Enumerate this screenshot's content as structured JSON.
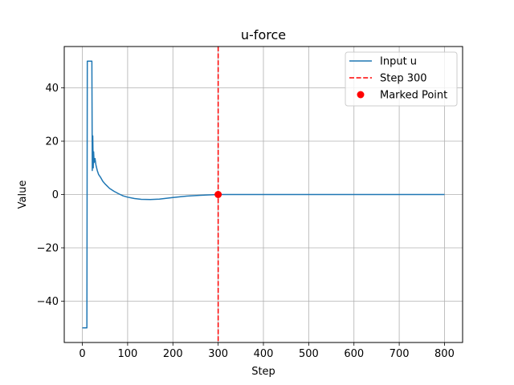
{
  "chart_data": {
    "type": "line",
    "title": "u-force",
    "xlabel": "Step",
    "ylabel": "Value",
    "xlim": [
      -40,
      840
    ],
    "ylim": [
      -55.5,
      55.5
    ],
    "xticks": [
      0,
      100,
      200,
      300,
      400,
      500,
      600,
      700,
      800
    ],
    "yticks": [
      -40,
      -20,
      0,
      20,
      40
    ],
    "grid": true,
    "legend_position": "top-right",
    "series": [
      {
        "name": "Input u",
        "color": "#1f77b4",
        "x": [
          0,
          10,
          11,
          14,
          21,
          22,
          23,
          24,
          25,
          26,
          28,
          30,
          33,
          36,
          40,
          45,
          50,
          60,
          70,
          80,
          90,
          100,
          115,
          130,
          150,
          170,
          200,
          230,
          260,
          290,
          300,
          330,
          400,
          500,
          600,
          700,
          800
        ],
        "y": [
          -50,
          -50,
          50,
          50,
          50,
          9,
          22,
          10,
          16,
          12,
          13.5,
          11,
          9,
          7.5,
          6.5,
          5,
          4,
          2.3,
          1.2,
          0.3,
          -0.5,
          -1,
          -1.5,
          -1.8,
          -1.9,
          -1.7,
          -1.1,
          -0.6,
          -0.3,
          -0.1,
          0,
          0,
          0,
          0,
          0,
          0,
          0
        ]
      }
    ],
    "vline": {
      "name": "Step 300",
      "x": 300,
      "color": "#ff0000",
      "style": "dashed"
    },
    "marked_point": {
      "name": "Marked Point",
      "x": 300,
      "y": 0,
      "color": "#ff0000"
    }
  }
}
